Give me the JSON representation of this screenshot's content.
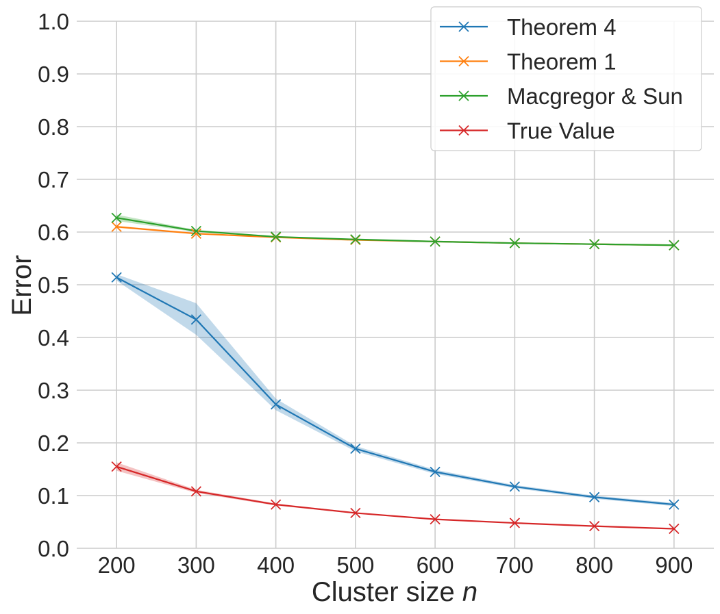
{
  "chart_data": {
    "type": "line",
    "xlabel": "Cluster size",
    "xlabel_var": "n",
    "ylabel": "Error",
    "x": [
      200,
      300,
      400,
      500,
      600,
      700,
      800,
      900
    ],
    "xlim": [
      150,
      950
    ],
    "ylim": [
      0.0,
      1.0
    ],
    "xticks": [
      200,
      300,
      400,
      500,
      600,
      700,
      800,
      900
    ],
    "yticks": [
      0.0,
      0.1,
      0.2,
      0.3,
      0.4,
      0.5,
      0.6,
      0.7,
      0.8,
      0.9,
      1.0
    ],
    "ytick_labels": [
      "0.0",
      "0.1",
      "0.2",
      "0.3",
      "0.4",
      "0.5",
      "0.6",
      "0.7",
      "0.8",
      "0.9",
      "1.0"
    ],
    "grid": true,
    "legend_position": "top-right",
    "series": [
      {
        "name": "Theorem 4",
        "color": "#1f77b4",
        "marker": "x",
        "values": [
          0.514,
          0.434,
          0.273,
          0.189,
          0.145,
          0.117,
          0.097,
          0.083
        ],
        "band_low": [
          0.508,
          0.405,
          0.262,
          0.184,
          0.141,
          0.114,
          0.094,
          0.08
        ],
        "band_high": [
          0.52,
          0.465,
          0.284,
          0.194,
          0.149,
          0.12,
          0.1,
          0.086
        ]
      },
      {
        "name": "Theorem 1",
        "color": "#ff7f0e",
        "marker": "x",
        "values": [
          0.61,
          0.597,
          0.59,
          0.585,
          0.582,
          0.579,
          0.577,
          0.575
        ],
        "band_low": [
          0.608,
          0.596,
          0.589,
          0.584,
          0.581,
          0.578,
          0.576,
          0.574
        ],
        "band_high": [
          0.612,
          0.598,
          0.591,
          0.586,
          0.583,
          0.58,
          0.578,
          0.576
        ]
      },
      {
        "name": "Macgregor & Sun",
        "color": "#2ca02c",
        "marker": "x",
        "values": [
          0.627,
          0.602,
          0.591,
          0.586,
          0.582,
          0.579,
          0.577,
          0.575
        ],
        "band_low": [
          0.621,
          0.6,
          0.59,
          0.585,
          0.581,
          0.578,
          0.576,
          0.574
        ],
        "band_high": [
          0.633,
          0.604,
          0.592,
          0.587,
          0.583,
          0.58,
          0.578,
          0.576
        ]
      },
      {
        "name": "True Value",
        "color": "#d62728",
        "marker": "x",
        "values": [
          0.155,
          0.108,
          0.083,
          0.067,
          0.055,
          0.048,
          0.042,
          0.037
        ],
        "band_low": [
          0.147,
          0.105,
          0.081,
          0.066,
          0.054,
          0.047,
          0.041,
          0.036
        ],
        "band_high": [
          0.163,
          0.111,
          0.085,
          0.068,
          0.056,
          0.049,
          0.043,
          0.038
        ]
      }
    ]
  }
}
